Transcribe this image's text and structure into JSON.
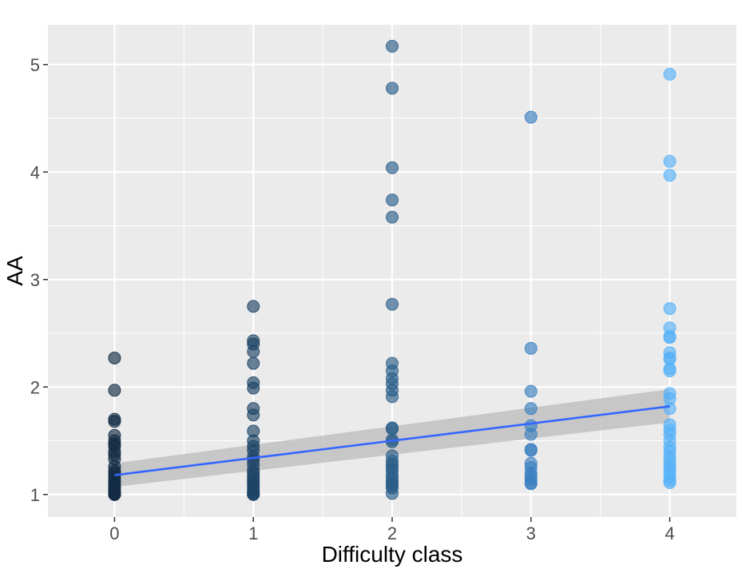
{
  "chart_data": {
    "type": "scatter",
    "title": "",
    "xlabel": "Difficulty class",
    "ylabel": "AA",
    "xlim": [
      -0.48,
      4.48
    ],
    "ylim": [
      0.79,
      5.37
    ],
    "x_ticks": [
      0,
      1,
      2,
      3,
      4
    ],
    "x_tick_labels": [
      "0",
      "1",
      "2",
      "3",
      "4"
    ],
    "y_ticks": [
      1,
      2,
      3,
      4,
      5
    ],
    "y_tick_labels": [
      "1",
      "2",
      "3",
      "4",
      "5"
    ],
    "grid": true,
    "legend": "none",
    "colors": {
      "panel_bg": "#ebebeb",
      "grid": "#ffffff",
      "ribbon": "#bebebe",
      "line": "#3366ff",
      "points_by_x": [
        "#132b43",
        "#1d4466",
        "#2a5d88",
        "#3b7fc0",
        "#56b1f7"
      ],
      "point_outline": "#1f2f3f"
    },
    "series": [
      {
        "name": "0",
        "x": 0,
        "values": [
          2.27,
          1.97,
          1.7,
          1.68,
          1.55,
          1.5,
          1.47,
          1.45,
          1.4,
          1.37,
          1.33,
          1.26,
          1.22,
          1.2,
          1.17,
          1.14,
          1.12,
          1.1,
          1.08,
          1.06,
          1.04,
          1.02,
          1.01,
          1.0,
          1.0,
          1.0
        ]
      },
      {
        "name": "1",
        "x": 1,
        "values": [
          2.75,
          2.43,
          2.4,
          2.33,
          2.22,
          2.04,
          1.99,
          1.8,
          1.74,
          1.59,
          1.5,
          1.45,
          1.41,
          1.35,
          1.32,
          1.28,
          1.23,
          1.2,
          1.17,
          1.14,
          1.12,
          1.1,
          1.08,
          1.05,
          1.03,
          1.01,
          1.0,
          1.0
        ]
      },
      {
        "name": "2",
        "x": 2,
        "values": [
          5.17,
          4.78,
          4.04,
          3.74,
          3.58,
          2.77,
          2.22,
          2.15,
          2.08,
          2.03,
          1.97,
          1.91,
          1.62,
          1.61,
          1.51,
          1.49,
          1.36,
          1.31,
          1.28,
          1.25,
          1.22,
          1.18,
          1.15,
          1.12,
          1.1,
          1.08,
          1.06,
          1.01
        ]
      },
      {
        "name": "3",
        "x": 3,
        "values": [
          4.51,
          2.36,
          1.96,
          1.8,
          1.64,
          1.56,
          1.42,
          1.41,
          1.29,
          1.25,
          1.2,
          1.17,
          1.14,
          1.11,
          1.1
        ]
      },
      {
        "name": "4",
        "x": 4,
        "values": [
          4.91,
          4.1,
          3.97,
          2.73,
          2.55,
          2.47,
          2.46,
          2.32,
          2.27,
          2.26,
          2.17,
          2.15,
          1.94,
          1.89,
          1.8,
          1.65,
          1.6,
          1.56,
          1.5,
          1.44,
          1.4,
          1.35,
          1.31,
          1.27,
          1.24,
          1.2,
          1.16,
          1.13,
          1.11
        ]
      }
    ],
    "fit": {
      "type": "linear",
      "x_range": [
        0,
        4
      ],
      "y_values": [
        1.18,
        1.82
      ],
      "ci_lower": [
        1.07,
        1.67
      ],
      "ci_upper": [
        1.29,
        1.98
      ]
    }
  }
}
